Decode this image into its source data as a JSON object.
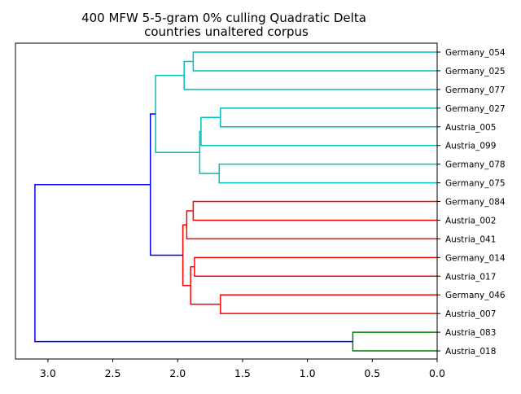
{
  "chart_data": {
    "type": "dendrogram",
    "title": "400 MFW 5-5-gram 0% culling Quadratic Delta",
    "subtitle": "countries unaltered corpus",
    "orientation": "left",
    "xlim": [
      3.25,
      0.0
    ],
    "xticks": [
      "3.0",
      "2.5",
      "2.0",
      "1.5",
      "1.0",
      "0.5",
      "0.0"
    ],
    "xtick_values": [
      3.0,
      2.5,
      2.0,
      1.5,
      1.0,
      0.5,
      0.0
    ],
    "leaves": [
      "Germany_054",
      "Germany_025",
      "Germany_077",
      "Germany_027",
      "Austria_005",
      "Austria_099",
      "Germany_078",
      "Germany_075",
      "Germany_084",
      "Austria_002",
      "Austria_041",
      "Germany_014",
      "Austria_017",
      "Germany_046",
      "Austria_007",
      "Austria_083",
      "Austria_018"
    ],
    "cluster_colors": {
      "cyan": "#00bfbf",
      "red": "#ff0000",
      "green": "#008000",
      "blue": "#0000ff"
    },
    "merges": [
      {
        "a": "L0",
        "b": "L1",
        "height": 1.88,
        "color": "cyan"
      },
      {
        "a": "M0",
        "b": "L2",
        "height": 1.95,
        "color": "cyan"
      },
      {
        "a": "L3",
        "b": "L4",
        "height": 1.67,
        "color": "cyan"
      },
      {
        "a": "M2",
        "b": "L5",
        "height": 1.82,
        "color": "cyan"
      },
      {
        "a": "L6",
        "b": "L7",
        "height": 1.68,
        "color": "cyan"
      },
      {
        "a": "M3",
        "b": "M4",
        "height": 1.83,
        "color": "cyan"
      },
      {
        "a": "M1",
        "b": "M5",
        "height": 2.17,
        "color": "cyan"
      },
      {
        "a": "L8",
        "b": "L9",
        "height": 1.88,
        "color": "red"
      },
      {
        "a": "M7",
        "b": "L10",
        "height": 1.93,
        "color": "red"
      },
      {
        "a": "L11",
        "b": "L12",
        "height": 1.87,
        "color": "red"
      },
      {
        "a": "L13",
        "b": "L14",
        "height": 1.67,
        "color": "red"
      },
      {
        "a": "M9",
        "b": "M10",
        "height": 1.9,
        "color": "red"
      },
      {
        "a": "M8",
        "b": "M11",
        "height": 1.96,
        "color": "red"
      },
      {
        "a": "M6",
        "b": "M12",
        "height": 2.21,
        "color": "blue"
      },
      {
        "a": "L15",
        "b": "L16",
        "height": 0.65,
        "color": "green"
      },
      {
        "a": "M13",
        "b": "M14",
        "height": 3.1,
        "color": "blue"
      }
    ]
  }
}
